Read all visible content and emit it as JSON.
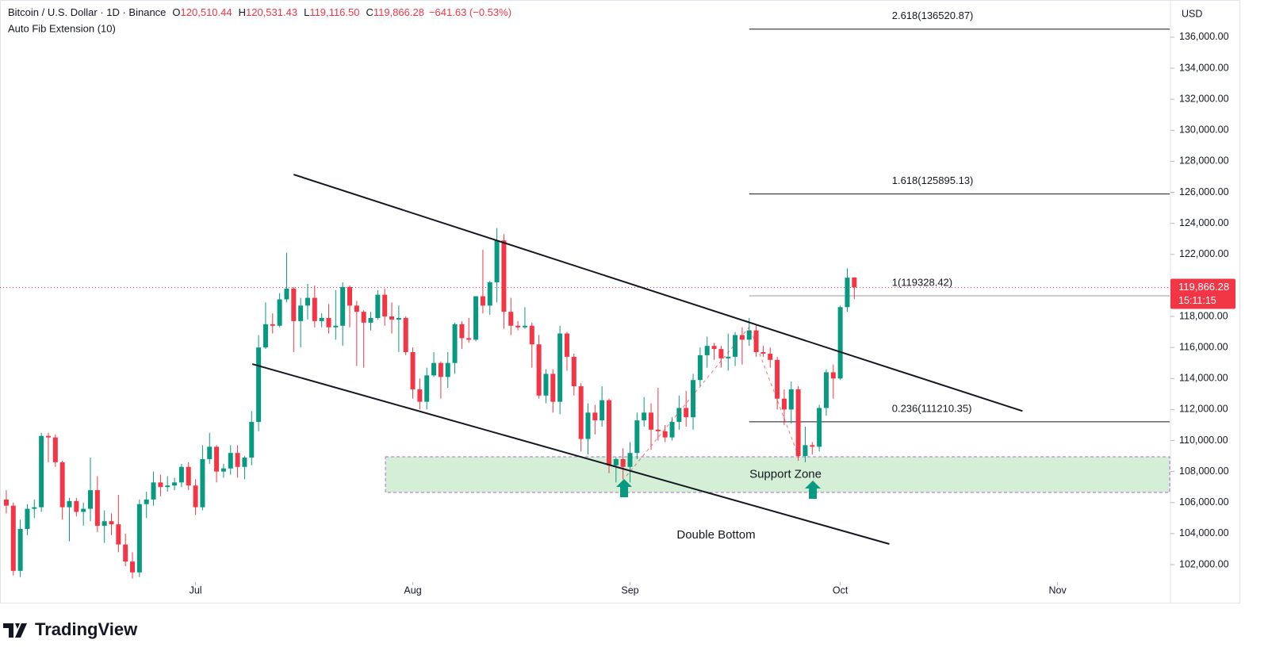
{
  "header": {
    "symbol": "Bitcoin / U.S. Dollar · 1D · Binance",
    "ohlc": [
      {
        "key": "O",
        "text": "120,510.44"
      },
      {
        "key": "H",
        "text": "120,531.43"
      },
      {
        "key": "L",
        "text": "119,116.50"
      },
      {
        "key": "C",
        "text": "119,866.28"
      }
    ],
    "change": "−641.63 (−0.53%)",
    "indicator": "Auto Fib Extension (10)"
  },
  "currency": "USD",
  "last_price_label": "119,866.28",
  "countdown": "15:11:15",
  "logo": "TradingView",
  "chart_data": {
    "type": "candlestick",
    "up_color": "#089981",
    "down_color": "#f23645",
    "xlim": [
      -0.9,
      166
    ],
    "ylim": [
      101080,
      138400
    ],
    "xticks": [
      {
        "value": 27,
        "label": "Jul"
      },
      {
        "value": 58,
        "label": "Aug"
      },
      {
        "value": 89,
        "label": "Sep"
      },
      {
        "value": 119,
        "label": "Oct"
      },
      {
        "value": 150,
        "label": "Nov"
      }
    ],
    "yticks": [
      {
        "value": 102000,
        "label": "102,000.00"
      },
      {
        "value": 104000,
        "label": "104,000.00"
      },
      {
        "value": 106000,
        "label": "106,000.00"
      },
      {
        "value": 108000,
        "label": "108,000.00"
      },
      {
        "value": 110000,
        "label": "110,000.00"
      },
      {
        "value": 112000,
        "label": "112,000.00"
      },
      {
        "value": 114000,
        "label": "114,000.00"
      },
      {
        "value": 116000,
        "label": "116,000.00"
      },
      {
        "value": 118000,
        "label": "118,000.00"
      },
      {
        "value": 120000,
        "label": "120,000.00"
      },
      {
        "value": 122000,
        "label": "122,000.00"
      },
      {
        "value": 124000,
        "label": "124,000.00"
      },
      {
        "value": 126000,
        "label": "126,000.00"
      },
      {
        "value": 128000,
        "label": "128,000.00"
      },
      {
        "value": 130000,
        "label": "130,000.00"
      },
      {
        "value": 132000,
        "label": "132,000.00"
      },
      {
        "value": 134000,
        "label": "134,000.00"
      },
      {
        "value": 136000,
        "label": "136,000.00"
      }
    ],
    "candles": [
      [
        106200,
        106800,
        105300,
        105800
      ],
      [
        105800,
        106000,
        101300,
        101600
      ],
      [
        101600,
        104900,
        101200,
        104300
      ],
      [
        104300,
        105900,
        103900,
        105600
      ],
      [
        105600,
        106200,
        105000,
        105700
      ],
      [
        105700,
        110500,
        105400,
        110300
      ],
      [
        110300,
        110500,
        108600,
        110200
      ],
      [
        110200,
        110400,
        108300,
        108600
      ],
      [
        108600,
        108700,
        104900,
        105700
      ],
      [
        105700,
        106300,
        103500,
        106100
      ],
      [
        106100,
        106300,
        105100,
        105400
      ],
      [
        105400,
        106000,
        104500,
        105600
      ],
      [
        105600,
        108900,
        104800,
        106800
      ],
      [
        106800,
        107700,
        104100,
        104500
      ],
      [
        104500,
        105500,
        103400,
        104800
      ],
      [
        104800,
        105300,
        103900,
        104600
      ],
      [
        104600,
        106500,
        102800,
        103300
      ],
      [
        103300,
        104000,
        101900,
        102200
      ],
      [
        102200,
        102800,
        101100,
        101500
      ],
      [
        101500,
        106200,
        101200,
        105900
      ],
      [
        105900,
        106700,
        105000,
        106200
      ],
      [
        106200,
        108000,
        105800,
        107300
      ],
      [
        107300,
        107800,
        106400,
        107000
      ],
      [
        107000,
        107700,
        106700,
        107100
      ],
      [
        107100,
        107600,
        106800,
        107300
      ],
      [
        107300,
        108500,
        107000,
        108300
      ],
      [
        108300,
        108600,
        106800,
        107100
      ],
      [
        107100,
        107500,
        105200,
        105700
      ],
      [
        105700,
        109700,
        105500,
        108800
      ],
      [
        108800,
        110500,
        108500,
        109600
      ],
      [
        109600,
        109700,
        107300,
        108000
      ],
      [
        108000,
        108500,
        107600,
        108200
      ],
      [
        108200,
        109700,
        107800,
        109200
      ],
      [
        109200,
        109700,
        107600,
        108300
      ],
      [
        108300,
        109000,
        107500,
        108900
      ],
      [
        108900,
        111900,
        108400,
        111200
      ],
      [
        111200,
        116800,
        110600,
        116000
      ],
      [
        116000,
        118900,
        115900,
        117500
      ],
      [
        117500,
        118200,
        116900,
        117400
      ],
      [
        117400,
        119500,
        117300,
        119100
      ],
      [
        119100,
        122100,
        118900,
        119800
      ],
      [
        119800,
        119900,
        115700,
        117700
      ],
      [
        117700,
        119200,
        116000,
        118700
      ],
      [
        118700,
        120100,
        117800,
        119200
      ],
      [
        119200,
        120000,
        117300,
        117700
      ],
      [
        117700,
        118200,
        117300,
        117900
      ],
      [
        117900,
        118800,
        116900,
        117300
      ],
      [
        117300,
        119700,
        116500,
        117400
      ],
      [
        117400,
        120200,
        116100,
        119900
      ],
      [
        119900,
        120000,
        117300,
        118700
      ],
      [
        118700,
        119000,
        114800,
        118300
      ],
      [
        118300,
        118400,
        114700,
        117600
      ],
      [
        117600,
        118300,
        117100,
        117900
      ],
      [
        117900,
        119700,
        117800,
        119400
      ],
      [
        119400,
        119800,
        117400,
        118000
      ],
      [
        118000,
        118900,
        116900,
        117800
      ],
      [
        117800,
        118700,
        115700,
        117900
      ],
      [
        117900,
        118000,
        115500,
        115700
      ],
      [
        115700,
        116000,
        112700,
        113300
      ],
      [
        113300,
        114000,
        112000,
        112500
      ],
      [
        112500,
        114700,
        112000,
        114200
      ],
      [
        114200,
        115700,
        114100,
        115000
      ],
      [
        115000,
        115100,
        112700,
        114100
      ],
      [
        114100,
        115700,
        113400,
        115000
      ],
      [
        115000,
        117600,
        114300,
        117500
      ],
      [
        117500,
        117700,
        115900,
        116600
      ],
      [
        116600,
        117900,
        116300,
        116500
      ],
      [
        116500,
        119300,
        116400,
        119300
      ],
      [
        119300,
        122300,
        118200,
        118700
      ],
      [
        118700,
        120300,
        118100,
        120200
      ],
      [
        120200,
        123700,
        118900,
        122900
      ],
      [
        122900,
        123300,
        117200,
        118300
      ],
      [
        118300,
        119200,
        116800,
        117400
      ],
      [
        117400,
        117700,
        117100,
        117300
      ],
      [
        117300,
        118600,
        117200,
        117400
      ],
      [
        117400,
        117600,
        114700,
        116200
      ],
      [
        116200,
        116800,
        112700,
        112900
      ],
      [
        112900,
        114600,
        112400,
        114300
      ],
      [
        114300,
        114600,
        111800,
        112500
      ],
      [
        112500,
        117400,
        111700,
        116900
      ],
      [
        116900,
        117000,
        114500,
        115400
      ],
      [
        115400,
        115600,
        112900,
        113500
      ],
      [
        113500,
        113700,
        109300,
        110100
      ],
      [
        110100,
        112400,
        109100,
        111800
      ],
      [
        111800,
        112300,
        110400,
        111300
      ],
      [
        111300,
        113500,
        110900,
        112600
      ],
      [
        112600,
        112700,
        107900,
        108400
      ],
      [
        108400,
        108900,
        107300,
        108800
      ],
      [
        108800,
        109500,
        107500,
        108300
      ],
      [
        108300,
        109900,
        107300,
        109200
      ],
      [
        109200,
        111800,
        108800,
        111300
      ],
      [
        111300,
        112800,
        110900,
        111800
      ],
      [
        111800,
        112400,
        109400,
        110700
      ],
      [
        110700,
        113400,
        110000,
        110600
      ],
      [
        110600,
        111000,
        109900,
        110200
      ],
      [
        110200,
        111500,
        110000,
        111200
      ],
      [
        111200,
        112900,
        110700,
        112100
      ],
      [
        112100,
        113200,
        110900,
        111500
      ],
      [
        111500,
        114300,
        110700,
        113900
      ],
      [
        113900,
        116000,
        113500,
        115500
      ],
      [
        115500,
        116700,
        114700,
        116100
      ],
      [
        116100,
        116300,
        115200,
        115900
      ],
      [
        115900,
        116100,
        114700,
        115300
      ],
      [
        115300,
        116900,
        114500,
        115400
      ],
      [
        115400,
        117000,
        114800,
        116800
      ],
      [
        116800,
        117300,
        114900,
        116500
      ],
      [
        116500,
        117900,
        116100,
        117100
      ],
      [
        117100,
        117500,
        115400,
        115700
      ],
      [
        115700,
        116100,
        115400,
        115600
      ],
      [
        115600,
        116000,
        114700,
        115200
      ],
      [
        115200,
        115400,
        112000,
        112700
      ],
      [
        112700,
        113300,
        111000,
        112000
      ],
      [
        112000,
        113800,
        111100,
        113300
      ],
      [
        113300,
        113500,
        108700,
        109000
      ],
      [
        109000,
        110900,
        108600,
        109700
      ],
      [
        109700,
        109900,
        109100,
        109600
      ],
      [
        109600,
        112300,
        109300,
        112100
      ],
      [
        112100,
        114600,
        111600,
        114400
      ],
      [
        114400,
        114900,
        112700,
        114000
      ],
      [
        114000,
        118700,
        113900,
        118600
      ],
      [
        118600,
        121100,
        118300,
        120500
      ],
      [
        120510.44,
        120531.43,
        119116.5,
        119866.28
      ]
    ],
    "trendlines": [
      {
        "x": [
          41,
          145
        ],
        "y": [
          127150,
          111900
        ]
      },
      {
        "x": [
          35.1,
          126
        ],
        "y": [
          114930,
          103330
        ]
      }
    ],
    "fib": {
      "x_start": 106,
      "levels": [
        {
          "value": 136520.87,
          "label": "2.618(136520.87)"
        },
        {
          "value": 125895.13,
          "label": "1.618(125895.13)"
        },
        {
          "value": 119328.42,
          "label": "1(119328.42)"
        },
        {
          "value": 111210.35,
          "label": "0.236(111210.35)"
        }
      ]
    },
    "support_zone": {
      "label": "Support Zone",
      "x_start": 54.1,
      "y": [
        106650,
        108950
      ]
    },
    "annotation": "Double Bottom"
  }
}
